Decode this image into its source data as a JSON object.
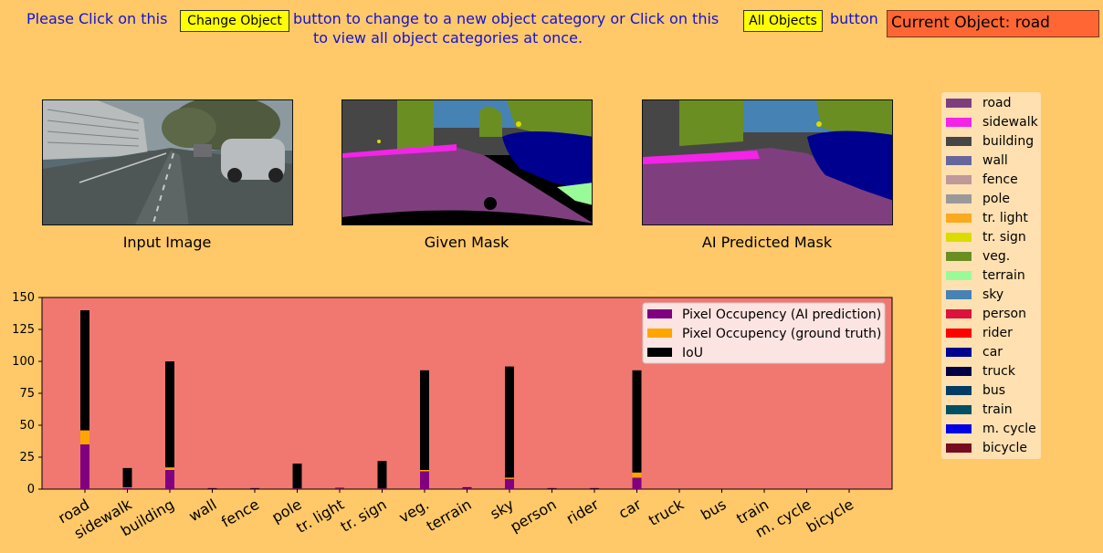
{
  "instruction": {
    "part1": "Please Click on this",
    "part2": "button to change to a new object category or Click on this",
    "part3": "button",
    "line2": "to view all object categories at once."
  },
  "buttons": {
    "change_object": "Change Object",
    "all_objects": "All Objects"
  },
  "current_object": "Current Object: road",
  "panels": {
    "input": "Input Image",
    "given": "Given Mask",
    "predicted": "AI Predicted Mask"
  },
  "legend": [
    {
      "label": "road",
      "color": "#7f3f7f"
    },
    {
      "label": "sidewalk",
      "color": "#f423e8"
    },
    {
      "label": "building",
      "color": "#464646"
    },
    {
      "label": "wall",
      "color": "#66669c"
    },
    {
      "label": "fence",
      "color": "#be9999"
    },
    {
      "label": "pole",
      "color": "#999999"
    },
    {
      "label": "tr. light",
      "color": "#faaa1e"
    },
    {
      "label": "tr. sign",
      "color": "#dcdc00"
    },
    {
      "label": "veg.",
      "color": "#6b8e23"
    },
    {
      "label": "terrain",
      "color": "#98fb98"
    },
    {
      "label": "sky",
      "color": "#4682b4"
    },
    {
      "label": "person",
      "color": "#dc143c"
    },
    {
      "label": "rider",
      "color": "#ff0000"
    },
    {
      "label": "car",
      "color": "#00008e"
    },
    {
      "label": "truck",
      "color": "#000046"
    },
    {
      "label": "bus",
      "color": "#003c64"
    },
    {
      "label": "train",
      "color": "#005064"
    },
    {
      "label": "m. cycle",
      "color": "#0000e6"
    },
    {
      "label": "bicycle",
      "color": "#770b20"
    }
  ],
  "chart_data": {
    "type": "bar",
    "categories": [
      "road",
      "sidewalk",
      "building",
      "wall",
      "fence",
      "pole",
      "tr. light",
      "tr. sign",
      "veg.",
      "terrain",
      "sky",
      "person",
      "rider",
      "car",
      "truck",
      "bus",
      "train",
      "m. cycle",
      "bicycle"
    ],
    "stacked": true,
    "series": [
      {
        "name": "Pixel Occupency (AI prediction)",
        "color": "#800080",
        "values": [
          35,
          1,
          15,
          0.3,
          0.3,
          0.5,
          0.5,
          0.5,
          14,
          1,
          8,
          0.3,
          0.3,
          9,
          0,
          0,
          0,
          0,
          0
        ]
      },
      {
        "name": "Pixel Occupency (ground truth)",
        "color": "#ffa500",
        "values": [
          11,
          0.5,
          2,
          0,
          0,
          0,
          0,
          0,
          1,
          0,
          1,
          0,
          0,
          4,
          0,
          0,
          0,
          0,
          0
        ]
      },
      {
        "name": "IoU",
        "color": "#000000",
        "values": [
          94,
          15,
          83,
          0.5,
          0.5,
          19.5,
          0.5,
          21.5,
          78,
          0.5,
          87,
          0.5,
          0.5,
          80,
          0,
          0,
          0,
          0,
          0
        ]
      }
    ],
    "ylim": [
      0,
      150
    ],
    "yticks": [
      0,
      25,
      50,
      75,
      100,
      125,
      150
    ],
    "background": "#f07870",
    "legend_position": "top-right"
  }
}
